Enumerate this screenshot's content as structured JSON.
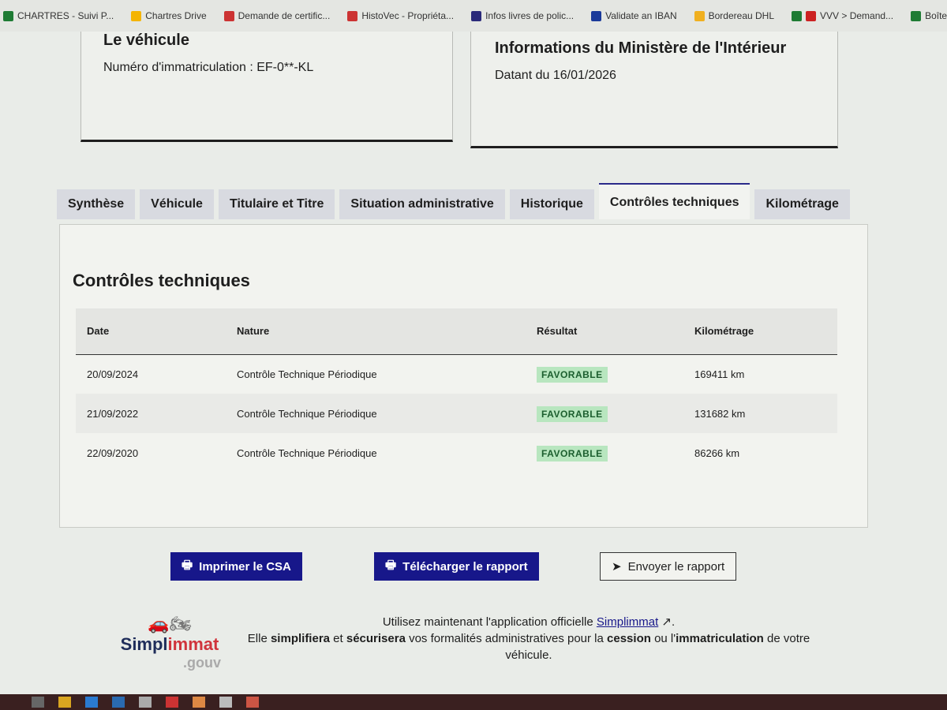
{
  "bookmarks": [
    "CHARTRES - Suivi P...",
    "Chartres Drive",
    "Demande de certific...",
    "HistoVec - Propriéta...",
    "Infos livres de polic...",
    "Validate an IBAN",
    "Bordereau DHL",
    "VVV > Demand...",
    "Boîte à outils c"
  ],
  "vehicle": {
    "title": "Le véhicule",
    "plate": "Numéro d'immatriculation : EF-0**-KL"
  },
  "ministry": {
    "title": "Informations du Ministère de l'Intérieur",
    "date": "Datant du 16/01/2026"
  },
  "tabs": [
    "Synthèse",
    "Véhicule",
    "Titulaire et Titre",
    "Situation administrative",
    "Historique",
    "Contrôles techniques",
    "Kilométrage"
  ],
  "active_tab": "Contrôles techniques",
  "section_title": "Contrôles techniques",
  "table": {
    "headers": [
      "Date",
      "Nature",
      "Résultat",
      "Kilométrage"
    ],
    "rows": [
      {
        "date": "20/09/2024",
        "nature": "Contrôle Technique Périodique",
        "result": "FAVORABLE",
        "km": "169411 km"
      },
      {
        "date": "21/09/2022",
        "nature": "Contrôle Technique Périodique",
        "result": "FAVORABLE",
        "km": "131682 km"
      },
      {
        "date": "22/09/2020",
        "nature": "Contrôle Technique Périodique",
        "result": "FAVORABLE",
        "km": "86266 km"
      }
    ]
  },
  "buttons": {
    "print": "Imprimer le CSA",
    "download": "Télécharger le rapport",
    "send": "Envoyer le rapport"
  },
  "footer": {
    "logo": "Simplimmat.gouv",
    "line1": "Utilisez maintenant l'application officielle",
    "link": "Simplimmat",
    "line2_a": "Elle",
    "line2_b": "simplifiera",
    "line2_c": "et",
    "line2_d": "sécurisera",
    "line2_e": "vos formalités administratives pour la",
    "line2_f": "cession",
    "line2_g": "ou l'",
    "line2_h": "immatriculation",
    "line2_i": "de votre véhicule."
  },
  "colors": {
    "primary": "#17178a",
    "success_bg": "#b8e6bf"
  }
}
